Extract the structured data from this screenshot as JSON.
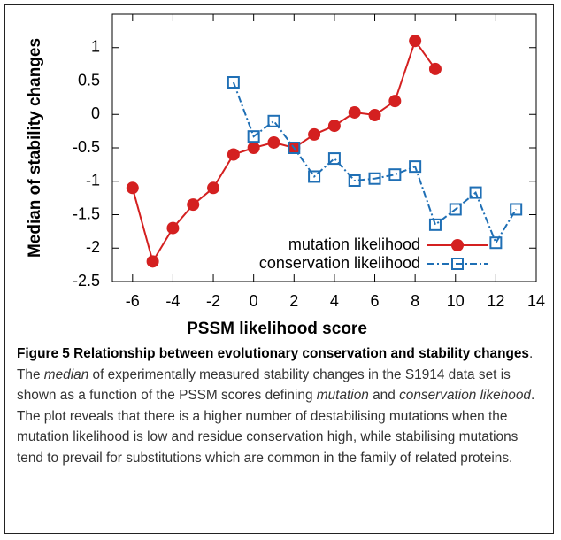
{
  "chart_data": {
    "type": "line",
    "x_label": "PSSM likelihood score",
    "y_label": "Median of stability changes",
    "xlim": [
      -7,
      14
    ],
    "xticks": [
      -6,
      -4,
      -2,
      0,
      2,
      4,
      6,
      8,
      10,
      12,
      14
    ],
    "ylim": [
      -2.5,
      1.5
    ],
    "yticks": [
      -2.5,
      -2,
      -1.5,
      -1,
      -0.5,
      0,
      0.5,
      1
    ],
    "series": [
      {
        "name": "mutation likelihood",
        "color": "#d42020",
        "x": [
          -6,
          -5,
          -4,
          -3,
          -2,
          -1,
          0,
          1,
          2,
          3,
          4,
          5,
          6,
          7,
          8,
          9
        ],
        "values": [
          -1.1,
          -2.2,
          -1.7,
          -1.35,
          -1.1,
          -0.6,
          -0.5,
          -0.42,
          -0.5,
          -0.3,
          -0.17,
          0.03,
          -0.01,
          0.2,
          1.1,
          0.68
        ]
      },
      {
        "name": "conservation likelihood",
        "color": "#1f6fb5",
        "x": [
          -1,
          0,
          1,
          2,
          3,
          4,
          5,
          6,
          7,
          8,
          9,
          10,
          11,
          12,
          13
        ],
        "values": [
          0.48,
          -0.33,
          -0.1,
          -0.5,
          -0.93,
          -0.66,
          -0.99,
          -0.96,
          -0.9,
          -0.78,
          -1.65,
          -1.42,
          -1.17,
          -1.92,
          -1.42
        ]
      }
    ]
  },
  "caption": [
    "Figure 5 Relationship between evolutionary conservation and stability changes",
    ". The ",
    "median",
    " of experimentally measured stability changes in the S1914 data set is shown as a function of the PSSM scores defining ",
    "mutation",
    " and ",
    "conservation likehood",
    ". The plot reveals that there is a higher number of destabilising mutations when the mutation likelihood is low and residue conservation high, while stabilising mutations tend to prevail for substitutions which are common in the family of related proteins."
  ]
}
